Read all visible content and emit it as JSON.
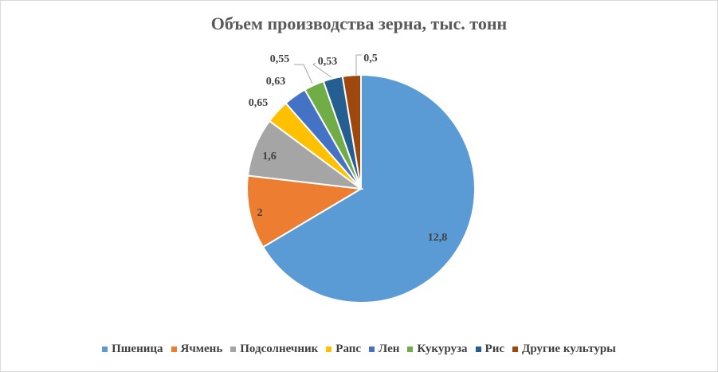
{
  "chart_data": {
    "type": "pie",
    "title": "Объем производства зерна, тыс. тонн",
    "categories": [
      "Пшеница",
      "Ячмень",
      "Подсолнечник",
      "Рапс",
      "Лен",
      "Кукуруза",
      "Рис",
      "Другие культуры"
    ],
    "values": [
      12.8,
      2,
      1.6,
      0.65,
      0.63,
      0.55,
      0.53,
      0.5
    ],
    "data_labels": [
      "12,8",
      "2",
      "1,6",
      "0,65",
      "0,63",
      "0,55",
      "0,53",
      "0,5"
    ],
    "colors": [
      "#5b9bd5",
      "#ed7d31",
      "#a5a5a5",
      "#ffc000",
      "#4472c4",
      "#70ad47",
      "#255e91",
      "#9e480e"
    ],
    "legend_position": "bottom",
    "start_angle_deg": 0,
    "direction": "clockwise"
  }
}
